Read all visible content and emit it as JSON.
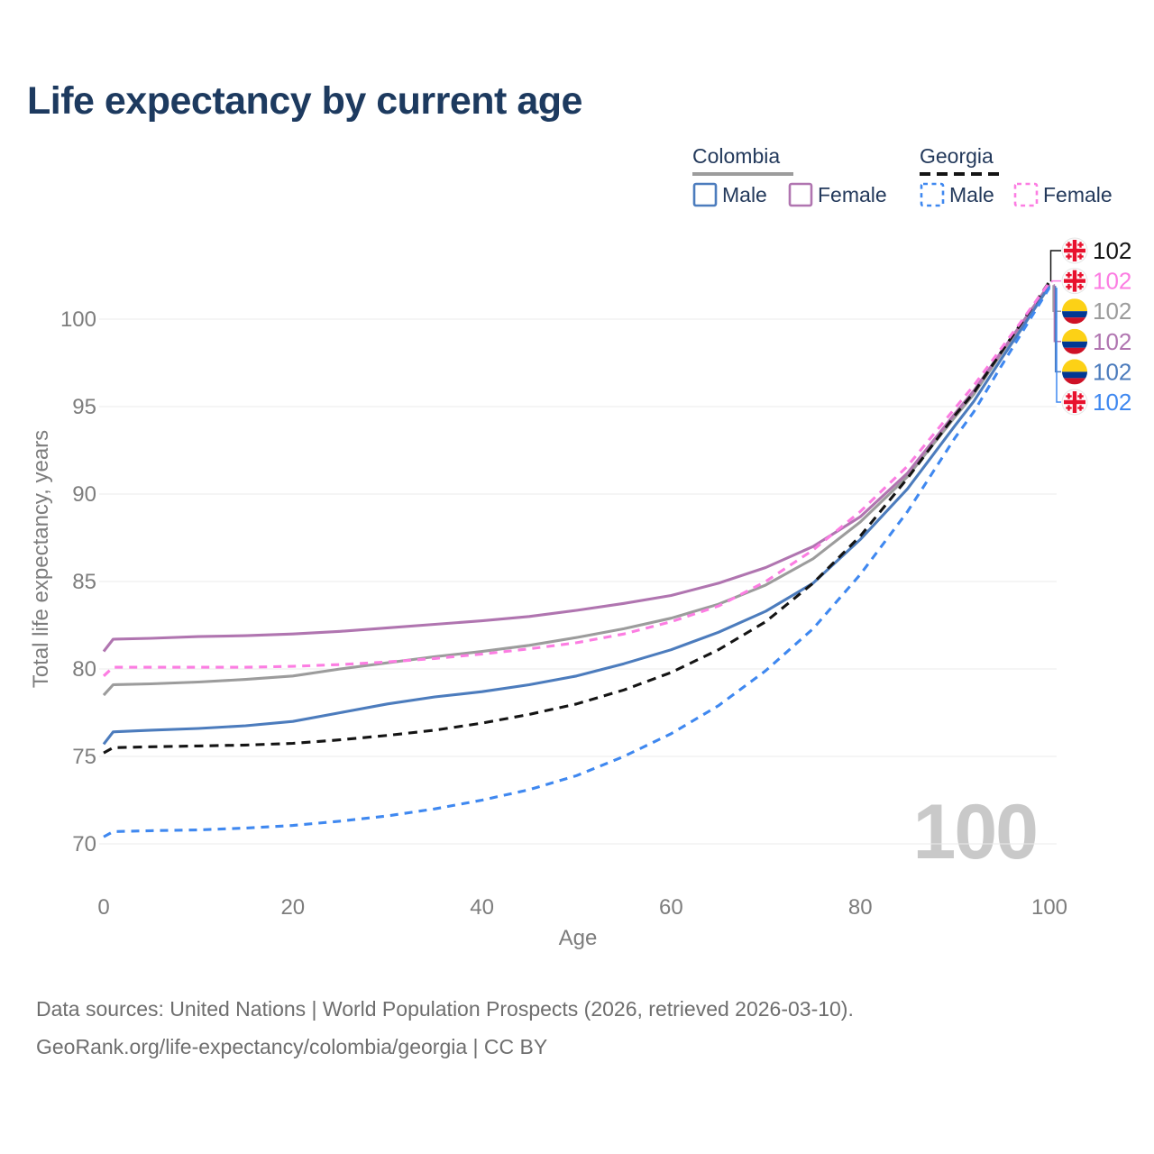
{
  "title": "Life expectancy by current age",
  "watermark": "100",
  "legend": {
    "groups": [
      {
        "label": "Colombia",
        "color": "#9c9c9c",
        "style": "solid"
      },
      {
        "label": "Georgia",
        "color": "#141414",
        "style": "dashed"
      }
    ],
    "items": [
      {
        "label": "Male",
        "color": "#4c7cbd",
        "dashed": false
      },
      {
        "label": "Female",
        "color": "#b075b0",
        "dashed": false
      },
      {
        "label": "Male",
        "color": "#3f88f0",
        "dashed": true
      },
      {
        "label": "Female",
        "color": "#fc7de2",
        "dashed": true
      }
    ]
  },
  "chart_data": {
    "type": "line",
    "title": "Life expectancy by current age",
    "xlabel": "Age",
    "ylabel": "Total life expectancy, years",
    "xlim": [
      0,
      100
    ],
    "ylim": [
      68.5,
      103
    ],
    "xticks": [
      0,
      20,
      40,
      60,
      80,
      100
    ],
    "yticks": [
      70,
      75,
      80,
      85,
      90,
      95,
      100
    ],
    "grid": "horizontal",
    "legend_position": "top-right",
    "x": [
      0,
      1,
      5,
      10,
      15,
      20,
      25,
      30,
      35,
      40,
      45,
      50,
      55,
      60,
      65,
      70,
      75,
      80,
      85,
      90,
      92,
      95,
      97,
      100
    ],
    "series": [
      {
        "name": "Colombia (both sexes)",
        "country": "Colombia",
        "color": "#9c9c9c",
        "dashed": false,
        "values": [
          78.5,
          79.1,
          79.15,
          79.25,
          79.4,
          79.6,
          80.0,
          80.35,
          80.7,
          81.0,
          81.35,
          81.8,
          82.3,
          82.9,
          83.7,
          84.8,
          86.3,
          88.4,
          91.0,
          94.4,
          95.7,
          98.1,
          99.6,
          101.95
        ],
        "end_label": "102"
      },
      {
        "name": "Colombia Female",
        "country": "Colombia",
        "color": "#b075b0",
        "dashed": false,
        "values": [
          81.0,
          81.7,
          81.75,
          81.85,
          81.9,
          82.0,
          82.15,
          82.35,
          82.55,
          82.75,
          83.0,
          83.35,
          83.75,
          84.2,
          84.9,
          85.8,
          87.0,
          88.7,
          91.2,
          94.6,
          95.9,
          98.2,
          99.7,
          102.0
        ],
        "end_label": "102"
      },
      {
        "name": "Colombia Male",
        "country": "Colombia",
        "color": "#4c7cbd",
        "dashed": false,
        "values": [
          75.7,
          76.4,
          76.5,
          76.6,
          76.75,
          77.0,
          77.5,
          78.0,
          78.4,
          78.7,
          79.1,
          79.6,
          80.3,
          81.1,
          82.1,
          83.3,
          84.9,
          87.4,
          90.3,
          93.9,
          95.3,
          97.8,
          99.4,
          101.9
        ],
        "end_label": "102"
      },
      {
        "name": "Georgia (both sexes)",
        "country": "Georgia",
        "color": "#141414",
        "dashed": true,
        "values": [
          75.2,
          75.5,
          75.55,
          75.6,
          75.65,
          75.75,
          75.95,
          76.2,
          76.5,
          76.9,
          77.4,
          78.0,
          78.8,
          79.8,
          81.1,
          82.7,
          84.9,
          87.6,
          90.9,
          94.5,
          95.8,
          98.2,
          99.75,
          102.15
        ],
        "end_label": "102"
      },
      {
        "name": "Georgia Female",
        "country": "Georgia",
        "color": "#fc7de2",
        "dashed": true,
        "values": [
          79.6,
          80.1,
          80.1,
          80.1,
          80.1,
          80.15,
          80.25,
          80.4,
          80.6,
          80.85,
          81.15,
          81.5,
          82.0,
          82.7,
          83.6,
          85.0,
          86.8,
          89.0,
          91.6,
          94.9,
          96.2,
          98.4,
          99.85,
          102.1
        ],
        "end_label": "102"
      },
      {
        "name": "Georgia Male",
        "country": "Georgia",
        "color": "#3f88f0",
        "dashed": true,
        "values": [
          70.4,
          70.7,
          70.75,
          70.8,
          70.9,
          71.05,
          71.3,
          71.6,
          72.0,
          72.5,
          73.1,
          73.9,
          75.0,
          76.3,
          77.9,
          79.9,
          82.3,
          85.4,
          89.0,
          93.2,
          94.7,
          97.4,
          99.15,
          101.8
        ],
        "end_label": "102"
      }
    ]
  },
  "callouts": [
    {
      "flag": "georgia",
      "value": "102",
      "color": "#141414"
    },
    {
      "flag": "georgia",
      "value": "102",
      "color": "#fc7de2"
    },
    {
      "flag": "colombia",
      "value": "102",
      "color": "#9c9c9c"
    },
    {
      "flag": "colombia",
      "value": "102",
      "color": "#b075b0"
    },
    {
      "flag": "colombia",
      "value": "102",
      "color": "#4c7cbd"
    },
    {
      "flag": "georgia",
      "value": "102",
      "color": "#3f88f0"
    }
  ],
  "flag_colors": {
    "colombia_yellow": "#FCD116",
    "colombia_blue": "#003893",
    "colombia_red": "#CE1126",
    "georgia_red": "#e8112d",
    "georgia_white": "#fdfdfd"
  },
  "footer": {
    "line1": "Data sources: United Nations | World Population Prospects (2026, retrieved 2026-03-10).",
    "line2": "GeoRank.org/life-expectancy/colombia/georgia | CC BY"
  }
}
